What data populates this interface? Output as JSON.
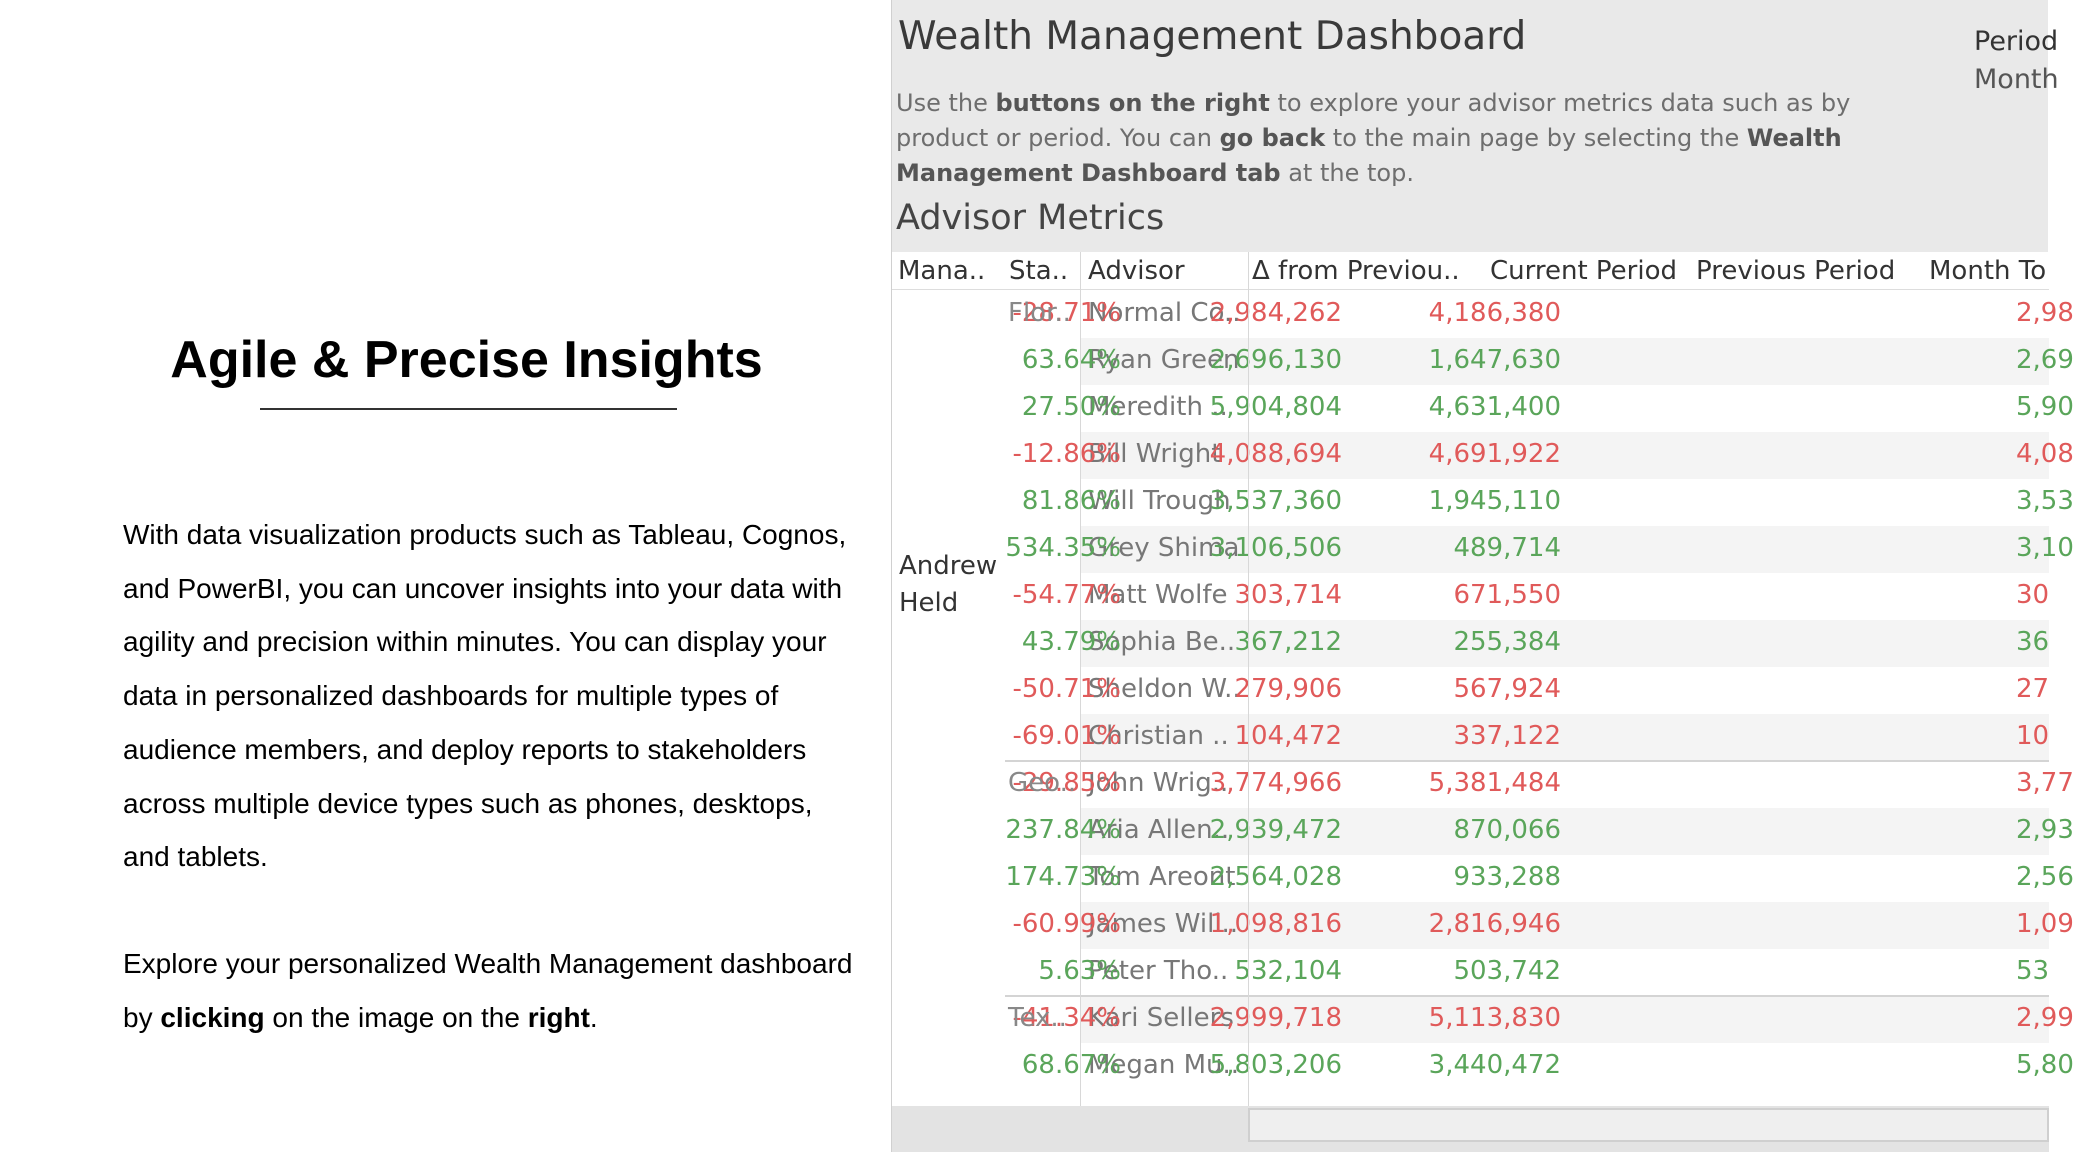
{
  "left": {
    "headline": "Agile & Precise Insights",
    "para1": "With data visualization products such as Tableau, Cognos, and PowerBI, you can uncover insights into your data with agility and precision within minutes. You can display your data in personalized dashboards for multiple types of audience members, and deploy reports to stakeholders across multiple device types such as phones, desktops, and tablets.",
    "para2_a": "Explore your personalized Wealth Management dashboard by ",
    "para2_b": "clicking",
    "para2_c": " on the image on the ",
    "para2_d": "right",
    "para2_e": "."
  },
  "dashboard": {
    "title": "Wealth Management Dashboard",
    "period_label": "Period",
    "period_value": "Month",
    "instructions": [
      {
        "t": "Use the ",
        "b": false
      },
      {
        "t": "buttons on the right",
        "b": true
      },
      {
        "t": " to explore your advisor metrics data such as by product or period. You can ",
        "b": false
      },
      {
        "t": "go back",
        "b": true
      },
      {
        "t": " to the main page by selecting the ",
        "b": false
      },
      {
        "t": "Wealth Management Dashboard tab",
        "b": true
      },
      {
        "t": " at the top.",
        "b": false
      }
    ],
    "section_title": "Advisor Metrics",
    "columns": [
      "Mana..",
      "Sta..",
      "Advisor",
      "Δ from Previou..",
      "Current Period",
      "Previous Period",
      "Month To"
    ],
    "manager": "Andrew Held",
    "groups": [
      {
        "state": "Flor..",
        "start": 0
      },
      {
        "state": "Geo..",
        "start": 10
      },
      {
        "state": "Tex..",
        "start": 15
      }
    ],
    "rows": [
      {
        "advisor": "Normal Co..",
        "delta": "-28.71%",
        "current": "2,984,262",
        "previous": "4,186,380",
        "mtd": "2,98",
        "neg": true
      },
      {
        "advisor": "Ryan Green",
        "delta": "63.64%",
        "current": "2,696,130",
        "previous": "1,647,630",
        "mtd": "2,69",
        "neg": false
      },
      {
        "advisor": "Meredith ..",
        "delta": "27.50%",
        "current": "5,904,804",
        "previous": "4,631,400",
        "mtd": "5,90",
        "neg": false
      },
      {
        "advisor": "Bill Wright",
        "delta": "-12.86%",
        "current": "4,088,694",
        "previous": "4,691,922",
        "mtd": "4,08",
        "neg": true
      },
      {
        "advisor": "Will Trough",
        "delta": "81.86%",
        "current": "3,537,360",
        "previous": "1,945,110",
        "mtd": "3,53",
        "neg": false
      },
      {
        "advisor": "Grey Shima",
        "delta": "534.35%",
        "current": "3,106,506",
        "previous": "489,714",
        "mtd": "3,10",
        "neg": false
      },
      {
        "advisor": "Matt Wolfe",
        "delta": "-54.77%",
        "current": "303,714",
        "previous": "671,550",
        "mtd": "30",
        "neg": true
      },
      {
        "advisor": "Sophia Be..",
        "delta": "43.79%",
        "current": "367,212",
        "previous": "255,384",
        "mtd": "36",
        "neg": false
      },
      {
        "advisor": "Sheldon W..",
        "delta": "-50.71%",
        "current": "279,906",
        "previous": "567,924",
        "mtd": "27",
        "neg": true
      },
      {
        "advisor": "Christian ..",
        "delta": "-69.01%",
        "current": "104,472",
        "previous": "337,122",
        "mtd": "10",
        "neg": true
      },
      {
        "advisor": "John Wrig..",
        "delta": "-29.85%",
        "current": "3,774,966",
        "previous": "5,381,484",
        "mtd": "3,77",
        "neg": true
      },
      {
        "advisor": "Aria Allen..",
        "delta": "237.84%",
        "current": "2,939,472",
        "previous": "870,066",
        "mtd": "2,93",
        "neg": false
      },
      {
        "advisor": "Tom Areont",
        "delta": "174.73%",
        "current": "2,564,028",
        "previous": "933,288",
        "mtd": "2,56",
        "neg": false
      },
      {
        "advisor": "James Will..",
        "delta": "-60.99%",
        "current": "1,098,816",
        "previous": "2,816,946",
        "mtd": "1,09",
        "neg": true
      },
      {
        "advisor": "Peter Tho..",
        "delta": "5.63%",
        "current": "532,104",
        "previous": "503,742",
        "mtd": "53",
        "neg": false
      },
      {
        "advisor": "Kari Sellers",
        "delta": "-41.34%",
        "current": "2,999,718",
        "previous": "5,113,830",
        "mtd": "2,99",
        "neg": true
      },
      {
        "advisor": "Megan Mu..",
        "delta": "68.67%",
        "current": "5,803,206",
        "previous": "3,440,472",
        "mtd": "5,80",
        "neg": false
      }
    ],
    "colors": {
      "negative": "#e05a5a",
      "positive": "#5aa55a",
      "background": "#e9e9e9"
    }
  }
}
